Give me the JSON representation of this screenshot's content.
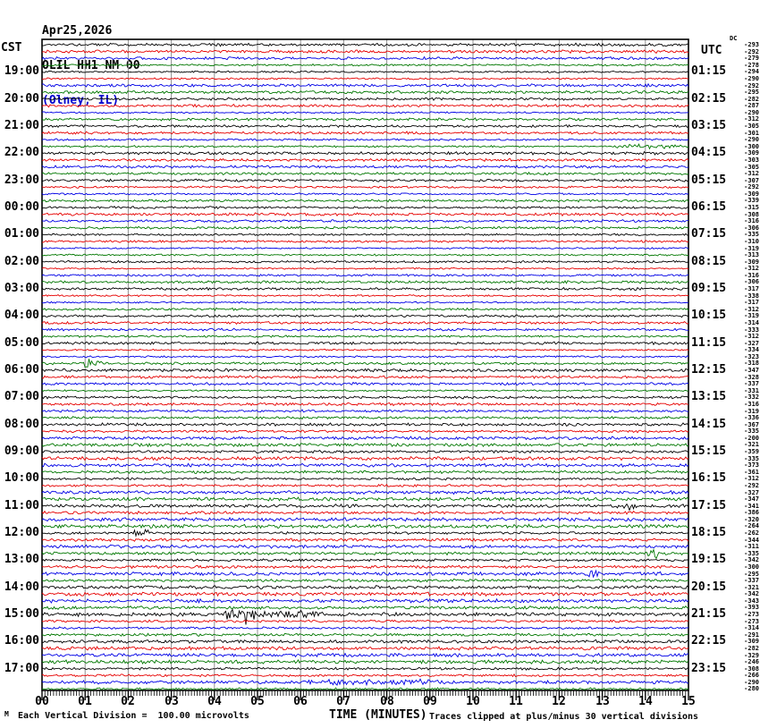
{
  "title": {
    "date": "Apr25,2026",
    "station": "OLIL HH1 NM 00",
    "location": "(Olney, IL)"
  },
  "left_axis": {
    "header": "CST",
    "labels": [
      "19:00",
      "20:00",
      "21:00",
      "22:00",
      "23:00",
      "00:00",
      "01:00",
      "02:00",
      "03:00",
      "04:00",
      "05:00",
      "06:00",
      "07:00",
      "08:00",
      "09:00",
      "10:00",
      "11:00",
      "12:00",
      "13:00",
      "14:00",
      "15:00",
      "16:00",
      "17:00"
    ]
  },
  "right_axis": {
    "header": "UTC",
    "labels": [
      "01:15",
      "02:15",
      "03:15",
      "04:15",
      "05:15",
      "06:15",
      "07:15",
      "08:15",
      "09:15",
      "10:15",
      "11:15",
      "12:15",
      "13:15",
      "14:15",
      "15:15",
      "16:15",
      "17:15",
      "18:15",
      "19:15",
      "20:15",
      "21:15",
      "22:15",
      "23:15"
    ]
  },
  "dc_column": {
    "header": "DC"
  },
  "x_axis": {
    "labels": [
      "00",
      "01",
      "02",
      "03",
      "04",
      "05",
      "06",
      "07",
      "08",
      "09",
      "10",
      "11",
      "12",
      "13",
      "14",
      "15"
    ],
    "title": "TIME (MINUTES)"
  },
  "footer": {
    "scale_note": "Each Vertical Division =  100.00 microvolts",
    "clip_note": "Traces clipped at plus/minus 30 vertical divisions",
    "watermark": "M"
  },
  "colors": {
    "trace_cycle": [
      "#000000",
      "#e60000",
      "#0000e6",
      "#007700"
    ],
    "grid": "#909090",
    "frame": "#000000",
    "location_text": "#0000cc"
  },
  "chart_data": {
    "type": "line",
    "variant": "helicorder-seismogram",
    "date": "Apr25,2026",
    "station": "OLIL HH1 NM 00",
    "station_location": "Olney, IL",
    "timezone_left": "CST",
    "timezone_right": "UTC",
    "minutes_per_line": 15,
    "num_lines": 96,
    "first_line_start_cst": "18:00",
    "x_range_minutes": [
      0,
      15
    ],
    "vertical_division_microvolts": 100.0,
    "clip_divisions": 30,
    "trace_color_cycle": [
      "black",
      "red",
      "blue",
      "green"
    ],
    "dc_offsets": [
      -293,
      -292,
      -279,
      -278,
      -294,
      -290,
      -292,
      -295,
      -282,
      -287,
      -290,
      -312,
      -305,
      -301,
      -290,
      -300,
      -309,
      -303,
      -305,
      -312,
      -307,
      -292,
      -309,
      -339,
      -315,
      -308,
      -316,
      -306,
      -335,
      -310,
      -319,
      -313,
      -309,
      -312,
      -316,
      -306,
      -317,
      -338,
      -317,
      -312,
      -319,
      -314,
      -333,
      -312,
      -327,
      -334,
      -323,
      -318,
      -347,
      -328,
      -337,
      -331,
      -332,
      -316,
      -319,
      -336,
      -367,
      -335,
      -200,
      -321,
      -359,
      -335,
      -373,
      -361,
      -312,
      -292,
      -327,
      -347,
      -341,
      -386,
      -320,
      -264,
      -262,
      -344,
      -311,
      -335,
      -342,
      -300,
      -295,
      -337,
      -321,
      -342,
      -343,
      -393,
      -273,
      -273,
      -314,
      -291,
      -309,
      -282,
      -329,
      -246,
      -308,
      -266,
      -290,
      -280
    ],
    "events": [
      {
        "line_index": 15,
        "start_min": 13.2,
        "end_min": 15.0,
        "amplitude": 2.2,
        "color": "green",
        "note": "elevated noise, 21:45 CST line"
      },
      {
        "line_index": 47,
        "start_min": 0.9,
        "end_min": 1.5,
        "amplitude": 5.0,
        "color": "green",
        "note": "burst near 05:46 CST"
      },
      {
        "line_index": 68,
        "start_min": 13.3,
        "end_min": 13.9,
        "amplitude": 3.0,
        "color": "black",
        "note": "burst near 11:13 CST"
      },
      {
        "line_index": 72,
        "start_min": 2.1,
        "end_min": 2.5,
        "amplitude": 5.0,
        "color": "black",
        "note": "spike near 12:02 CST"
      },
      {
        "line_index": 75,
        "start_min": 14.0,
        "end_min": 14.5,
        "amplitude": 5.0,
        "color": "green",
        "note": "burst near 12:59 CST"
      },
      {
        "line_index": 78,
        "start_min": 12.6,
        "end_min": 13.1,
        "amplitude": 3.0,
        "color": "blue",
        "note": "burst near 13:43 CST"
      },
      {
        "line_index": 84,
        "start_min": 4.2,
        "end_min": 5.0,
        "amplitude": 11.0,
        "color": "black",
        "note": "largest event, ~15:04 CST"
      },
      {
        "line_index": 84,
        "start_min": 5.0,
        "end_min": 6.6,
        "amplitude": 3.5,
        "color": "black",
        "note": "coda of largest event"
      },
      {
        "line_index": 94,
        "start_min": 6.0,
        "end_min": 9.5,
        "amplitude": 2.0,
        "color": "blue",
        "note": "elevated noise, 17:30 CST line"
      }
    ]
  }
}
